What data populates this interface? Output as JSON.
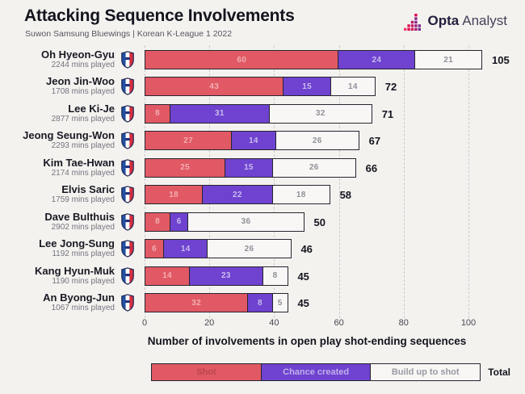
{
  "header": {
    "title": "Attacking Sequence Involvements",
    "subtitle": "Suwon Samsung Bluewings | Korean K-League 1 2022",
    "brand": {
      "name_bold": "Opta",
      "name_light": "Analyst"
    }
  },
  "chart_data": {
    "type": "bar",
    "orientation": "horizontal",
    "stacked": true,
    "title": "Attacking Sequence Involvements",
    "subtitle": "Suwon Samsung Bluewings | Korean K-League 1 2022",
    "xlabel": "Number of involvements in open play shot-ending sequences",
    "xticks": [
      0,
      20,
      40,
      60,
      80,
      100
    ],
    "xlim": [
      0,
      107
    ],
    "grid": "dashed-vertical",
    "legend_position": "bottom",
    "legend": [
      "Shot",
      "Chance created",
      "Build up to shot"
    ],
    "legend_total_label": "Total",
    "colors": {
      "shot": "#e15964",
      "chance_created": "#6f42cf",
      "build_up_to_shot": "#f8f7f5",
      "bar_border": "#26252f",
      "background": "#f4f2ef",
      "brand_red": "#e2044a",
      "brand_purple": "#6d2f8f"
    },
    "players": [
      {
        "name": "Oh Hyeon-Gyu",
        "minutes": "2244 mins played",
        "shot": 60,
        "chance_created": 24,
        "build_up": 21,
        "total": 105
      },
      {
        "name": "Jeon Jin-Woo",
        "minutes": "1708 mins played",
        "shot": 43,
        "chance_created": 15,
        "build_up": 14,
        "total": 72
      },
      {
        "name": "Lee Ki-Je",
        "minutes": "2877 mins played",
        "shot": 8,
        "chance_created": 31,
        "build_up": 32,
        "total": 71
      },
      {
        "name": "Jeong Seung-Won",
        "minutes": "2293 mins played",
        "shot": 27,
        "chance_created": 14,
        "build_up": 26,
        "total": 67
      },
      {
        "name": "Kim Tae-Hwan",
        "minutes": "2174 mins played",
        "shot": 25,
        "chance_created": 15,
        "build_up": 26,
        "total": 66
      },
      {
        "name": "Elvis Saric",
        "minutes": "1759 mins played",
        "shot": 18,
        "chance_created": 22,
        "build_up": 18,
        "total": 58
      },
      {
        "name": "Dave Bulthuis",
        "minutes": "2902 mins played",
        "shot": 8,
        "chance_created": 6,
        "build_up": 36,
        "total": 50
      },
      {
        "name": "Lee Jong-Sung",
        "minutes": "1192 mins played",
        "shot": 6,
        "chance_created": 14,
        "build_up": 26,
        "total": 46
      },
      {
        "name": "Kang Hyun-Muk",
        "minutes": "1190 mins played",
        "shot": 14,
        "chance_created": 23,
        "build_up": 8,
        "total": 45
      },
      {
        "name": "An Byong-Jun",
        "minutes": "1067 mins played",
        "shot": 32,
        "chance_created": 8,
        "build_up": 5,
        "total": 45
      }
    ]
  }
}
